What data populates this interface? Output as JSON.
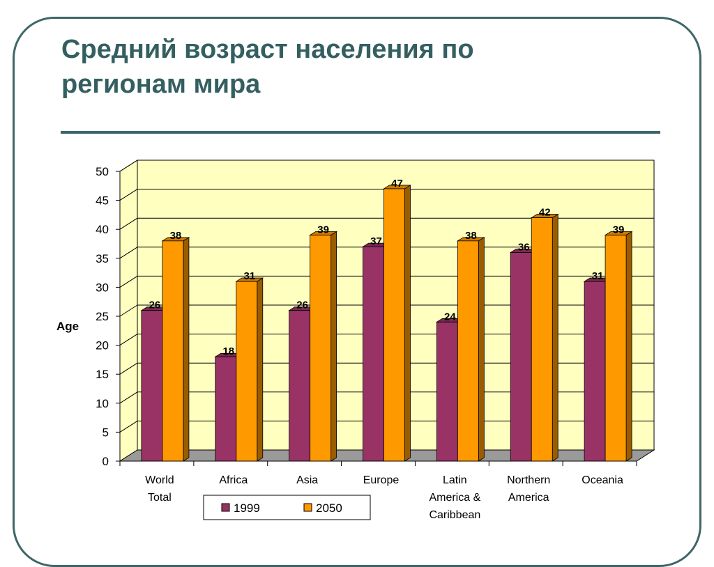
{
  "slide": {
    "title": "Средний возраст населения по\nрегионам мира"
  },
  "colors": {
    "frame": "#3f6668",
    "title": "#345f61",
    "plot_area": "#ffffc0",
    "floor": "#9a9a9a",
    "series_1999": "#993366",
    "series_2050": "#ff9900"
  },
  "chart_data": {
    "type": "bar",
    "title": "",
    "xlabel": "",
    "ylabel": "Age",
    "ylim": [
      0,
      50
    ],
    "yticks": [
      0,
      5,
      10,
      15,
      20,
      25,
      30,
      35,
      40,
      45,
      50
    ],
    "grid": true,
    "legend_position": "bottom",
    "categories": [
      [
        "World",
        "Total"
      ],
      [
        "Africa"
      ],
      [
        "Asia"
      ],
      [
        "Europe"
      ],
      [
        "Latin",
        "America &",
        "Caribbean"
      ],
      [
        "Northern",
        "America"
      ],
      [
        "Oceania"
      ]
    ],
    "series": [
      {
        "name": "1999",
        "color": "#993366",
        "values": [
          26,
          18,
          26,
          37,
          24,
          36,
          31
        ]
      },
      {
        "name": "2050",
        "color": "#ff9900",
        "values": [
          38,
          31,
          39,
          47,
          38,
          42,
          39
        ]
      }
    ]
  }
}
